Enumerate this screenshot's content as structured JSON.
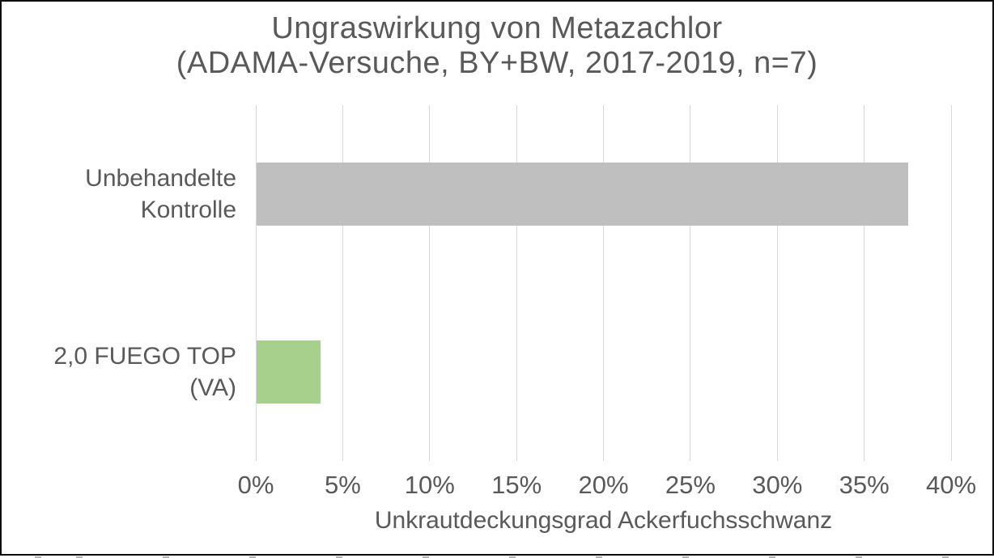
{
  "chart_data": {
    "type": "bar",
    "orientation": "horizontal",
    "title": "Ungraswirkung von Metazachlor",
    "subtitle": "(ADAMA-Versuche, BY+BW, 2017-2019, n=7)",
    "categories": [
      "Unbehandelte Kontrolle",
      "2,0 FUEGO TOP (VA)"
    ],
    "values": [
      37.5,
      3.7
    ],
    "bar_colors": [
      "#bfbfbf",
      "#a6d08b"
    ],
    "xlabel": "Unkrautdeckungsgrad Ackerfuchsschwanz",
    "xlim": [
      0,
      40
    ],
    "xtick_step": 5,
    "xtick_labels": [
      "0%",
      "5%",
      "10%",
      "15%",
      "20%",
      "25%",
      "30%",
      "35%",
      "40%"
    ],
    "grid": "vertical-only",
    "legend": "none",
    "colors": {
      "text": "#595959",
      "gridline": "#d9d9d9",
      "frame_border": "#0d0d0d",
      "background": "#ffffff"
    }
  }
}
